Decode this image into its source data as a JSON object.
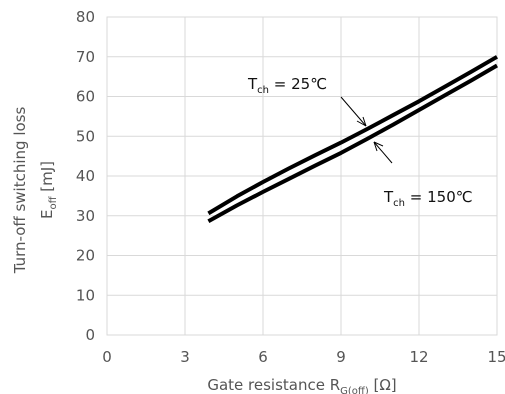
{
  "chart_data": {
    "type": "line",
    "title": "",
    "xlabel": {
      "main": "Gate resistance  R",
      "sub": "G(off)",
      "unit": " [Ω]"
    },
    "ylabel": {
      "line1": "Turn-off switching loss",
      "main": "E",
      "sub": "off",
      "unit": " [mJ]"
    },
    "xlim": [
      0,
      15
    ],
    "ylim": [
      0,
      80
    ],
    "xticks": [
      0,
      3,
      6,
      9,
      12,
      15
    ],
    "yticks": [
      0,
      10,
      20,
      30,
      40,
      50,
      60,
      70,
      80
    ],
    "grid": true,
    "colors": {
      "line": "#000000",
      "grid": "#d9d9d9",
      "text": "#555555"
    },
    "series": [
      {
        "label": {
          "main": "T",
          "sub": "ch",
          "rest": " = 25℃"
        },
        "x": [
          3.9,
          5,
          6,
          7,
          8,
          9,
          10,
          11,
          12,
          13,
          14,
          15
        ],
        "y": [
          30.6,
          34.9,
          38.5,
          41.9,
          45.2,
          48.4,
          51.8,
          55.3,
          58.8,
          62.5,
          66.2,
          70.0
        ]
      },
      {
        "label": {
          "main": "T",
          "sub": "ch",
          "rest": " = 150℃"
        },
        "x": [
          3.9,
          5,
          6,
          7,
          8,
          9,
          10,
          11,
          12,
          13,
          14,
          15
        ],
        "y": [
          28.6,
          32.6,
          36.0,
          39.3,
          42.6,
          45.8,
          49.3,
          52.9,
          56.6,
          60.3,
          64.0,
          67.8
        ]
      }
    ]
  }
}
